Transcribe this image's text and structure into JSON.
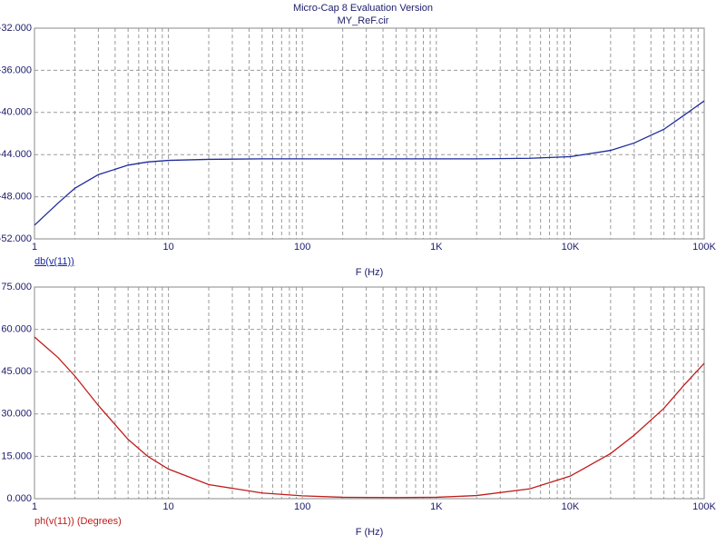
{
  "chart_data": [
    {
      "type": "line",
      "title": "Micro-Cap 8 Evaluation Version",
      "subtitle": "MY_ReF.cir",
      "xlabel": "F (Hz)",
      "ylabel": "db(v(11))",
      "xscale": "log",
      "grid": true,
      "minor_grid": true,
      "xlim": [
        1,
        100000
      ],
      "xticks": [
        1,
        10,
        100,
        {
          "value": 1000,
          "label": "1K"
        },
        {
          "value": 10000,
          "label": "10K"
        },
        {
          "value": 100000,
          "label": "100K"
        }
      ],
      "ylim": [
        -52,
        -32
      ],
      "yticks": [
        {
          "value": -52,
          "label": "-52.000"
        },
        {
          "value": -48,
          "label": "-48.000"
        },
        {
          "value": -44,
          "label": "-44.000"
        },
        {
          "value": -40,
          "label": "-40.000"
        },
        {
          "value": -36,
          "label": "-36.000"
        },
        {
          "value": -32,
          "label": "-32.000"
        }
      ],
      "x": [
        1,
        1.5,
        2,
        3,
        5,
        7,
        10,
        20,
        50,
        100,
        200,
        500,
        1000,
        2000,
        5000,
        10000,
        20000,
        30000,
        50000,
        70000,
        100000
      ],
      "series": [
        {
          "color": "#1c2a9c",
          "values": [
            -50.7,
            -48.6,
            -47.2,
            -45.9,
            -45.0,
            -44.7,
            -44.55,
            -44.45,
            -44.4,
            -44.4,
            -44.4,
            -44.4,
            -44.4,
            -44.4,
            -44.35,
            -44.2,
            -43.6,
            -42.9,
            -41.6,
            -40.3,
            -38.9
          ]
        }
      ]
    },
    {
      "type": "line",
      "xlabel": "F (Hz)",
      "ylabel": "ph(v(11)) (Degrees)",
      "xscale": "log",
      "grid": true,
      "minor_grid": true,
      "xlim": [
        1,
        100000
      ],
      "xticks": [
        1,
        10,
        100,
        {
          "value": 1000,
          "label": "1K"
        },
        {
          "value": 10000,
          "label": "10K"
        },
        {
          "value": 100000,
          "label": "100K"
        }
      ],
      "ylim": [
        0,
        75
      ],
      "yticks": [
        {
          "value": 0,
          "label": "0.000"
        },
        {
          "value": 15,
          "label": "15.000"
        },
        {
          "value": 30,
          "label": "30.000"
        },
        {
          "value": 45,
          "label": "45.000"
        },
        {
          "value": 60,
          "label": "60.000"
        },
        {
          "value": 75,
          "label": "75.000"
        }
      ],
      "x": [
        1,
        1.5,
        2,
        3,
        5,
        7,
        10,
        20,
        50,
        100,
        200,
        500,
        1000,
        2000,
        5000,
        10000,
        20000,
        30000,
        50000,
        70000,
        100000
      ],
      "series": [
        {
          "color": "#c01c1c",
          "values": [
            57.3,
            50,
            43.5,
            33,
            21,
            15,
            10.5,
            5,
            2,
            1,
            0.5,
            0.4,
            0.5,
            1.1,
            3.5,
            8,
            16,
            22.5,
            32,
            40,
            48
          ]
        }
      ]
    }
  ]
}
